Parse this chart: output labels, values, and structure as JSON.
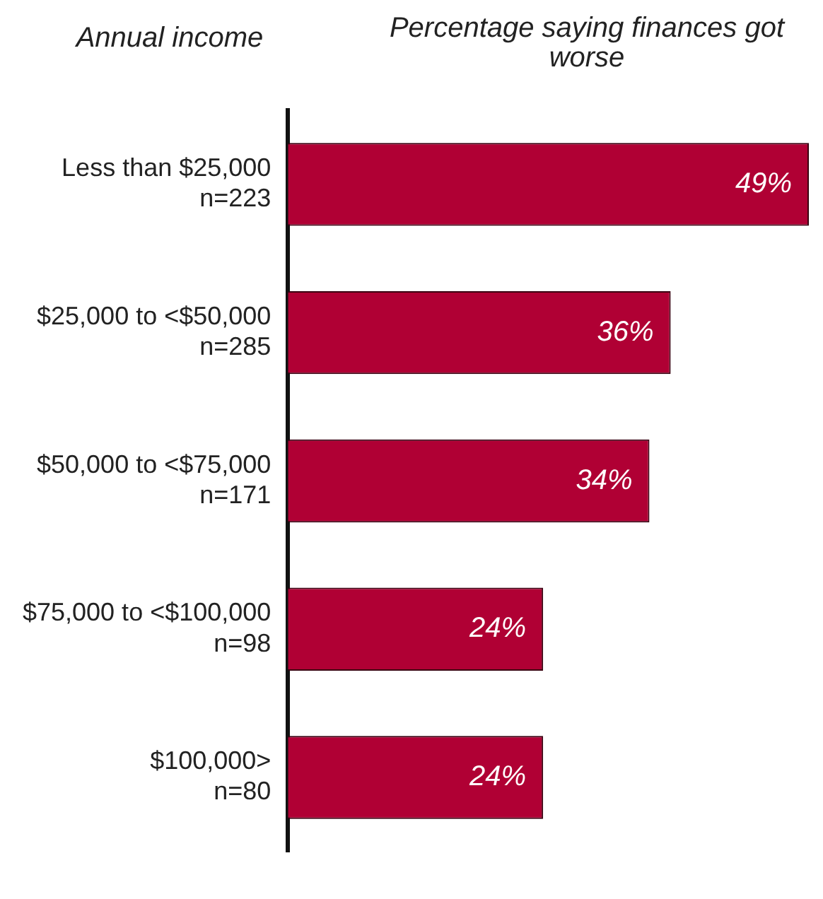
{
  "chart_data": {
    "type": "bar",
    "orientation": "horizontal",
    "title": "Percentage saying finances got worse",
    "ylabel": "Annual income",
    "categories": [
      "Less than $25,000\nn=223",
      "$25,000 to <$50,000\nn=285",
      "$50,000 to <$75,000\nn=171",
      "$75,000 to <$100,000\nn=98",
      "$100,000>\nn=80"
    ],
    "values": [
      49,
      36,
      34,
      24,
      24
    ],
    "value_labels": [
      "49%",
      "36%",
      "34%",
      "24%",
      "24%"
    ],
    "color": "#b00034"
  }
}
